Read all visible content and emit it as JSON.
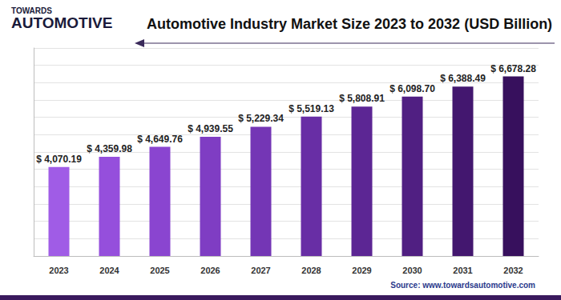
{
  "chart_data": {
    "type": "bar",
    "title": "Automotive Industry Market Size 2023 to 2032 (USD Billion)",
    "logo": [
      "TOWARDS",
      "AUTOMOTIVE"
    ],
    "source": "Source: www.towardsautomotive.com",
    "categories": [
      "2023",
      "2024",
      "2025",
      "2026",
      "2027",
      "2028",
      "2029",
      "2030",
      "2031",
      "2032"
    ],
    "values": [
      4070.19,
      4359.98,
      4649.76,
      4939.55,
      5229.34,
      5519.13,
      5808.91,
      6098.7,
      6388.49,
      6678.28
    ],
    "value_labels": [
      "$ 4,070.19",
      "$ 4,359.98",
      "$ 4,649.76",
      "$ 4,939.55",
      "$ 5,229.34",
      "$ 5,519.13",
      "$ 5,808.91",
      "$ 6,098.70",
      "$ 6,388.49",
      "$ 6,678.28"
    ],
    "colors": [
      "#a05ce6",
      "#954fdc",
      "#8a45d0",
      "#7f3dc3",
      "#7436b5",
      "#682ea5",
      "#5c2694",
      "#501f82",
      "#43176f",
      "#37105d"
    ],
    "ylim": [
      1500,
      7500
    ],
    "yticks": [
      1500,
      2000,
      2500,
      3000,
      3500,
      4000,
      4500,
      5000,
      5500,
      6000,
      6500,
      7000,
      7500
    ],
    "grid": true,
    "data_labels": true,
    "tick_labels": "x"
  }
}
